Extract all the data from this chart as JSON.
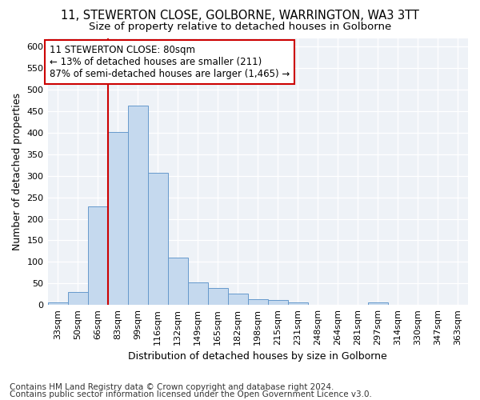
{
  "title1": "11, STEWERTON CLOSE, GOLBORNE, WARRINGTON, WA3 3TT",
  "title2": "Size of property relative to detached houses in Golborne",
  "xlabel": "Distribution of detached houses by size in Golborne",
  "ylabel": "Number of detached properties",
  "categories": [
    "33sqm",
    "50sqm",
    "66sqm",
    "83sqm",
    "99sqm",
    "116sqm",
    "132sqm",
    "149sqm",
    "165sqm",
    "182sqm",
    "198sqm",
    "215sqm",
    "231sqm",
    "248sqm",
    "264sqm",
    "281sqm",
    "297sqm",
    "314sqm",
    "330sqm",
    "347sqm",
    "363sqm"
  ],
  "values": [
    5,
    30,
    228,
    402,
    463,
    307,
    110,
    53,
    39,
    26,
    13,
    11,
    5,
    0,
    0,
    0,
    5,
    0,
    0,
    0,
    0
  ],
  "bar_color": "#c5d9ee",
  "bar_edgecolor": "#6699cc",
  "vline_color": "#cc0000",
  "vline_x": 3,
  "annotation_text": "11 STEWERTON CLOSE: 80sqm\n← 13% of detached houses are smaller (211)\n87% of semi-detached houses are larger (1,465) →",
  "annotation_box_color": "#ffffff",
  "annotation_box_edgecolor": "#cc0000",
  "footer1": "Contains HM Land Registry data © Crown copyright and database right 2024.",
  "footer2": "Contains public sector information licensed under the Open Government Licence v3.0.",
  "ylim": [
    0,
    620
  ],
  "yticks": [
    0,
    50,
    100,
    150,
    200,
    250,
    300,
    350,
    400,
    450,
    500,
    550,
    600
  ],
  "bg_color": "#eef2f7",
  "grid_color": "#ffffff",
  "title1_fontsize": 10.5,
  "title2_fontsize": 9.5,
  "axis_fontsize": 9,
  "tick_fontsize": 8,
  "annot_fontsize": 8.5,
  "footer_fontsize": 7.5
}
